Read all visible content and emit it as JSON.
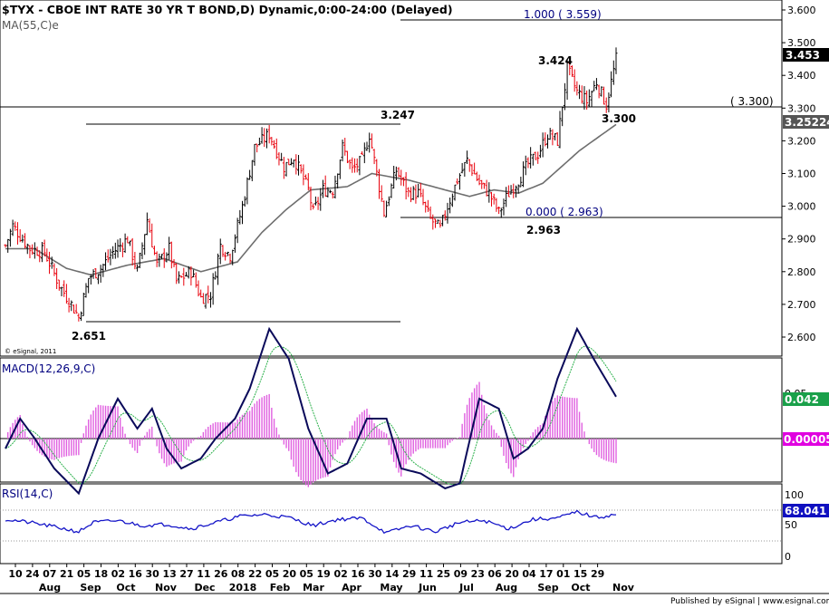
{
  "header": {
    "title": "$TYX - CBOE INT RATE 30 YR T BOND,D) Dynamic,0:00-24:00 (Delayed)",
    "ma_label": "MA(55,C)e",
    "copyright": "© eSignal, 2011"
  },
  "colors": {
    "up_bar": "#000000",
    "down_bar": "#e8000b",
    "ma_line": "#6e6e6e",
    "macd_line": "#0a0a5a",
    "signal_line": "#2ab04a",
    "histogram": "#e060e0",
    "rsi_line": "#1414c8",
    "fib_text": "#000080",
    "last_price_box": "#000000",
    "ma_box": "#555555",
    "macd_box": "#1aa04a",
    "hist_box": "#e000e0",
    "rsi_box": "#1010c0"
  },
  "price_panel": {
    "y_ticks": [
      "3.600",
      "3.500",
      "3.400",
      "3.300",
      "3.200",
      "3.100",
      "3.000",
      "2.900",
      "2.800",
      "2.700",
      "2.600"
    ],
    "y_range": [
      2.54,
      3.62
    ],
    "last_price": "3.453",
    "ma_value": "3.25224",
    "annotations": {
      "fib_top": "1.000 ( 3.559)",
      "fib_bottom": "0.000 ( 2.963)",
      "level_3300": "( 3.300)",
      "label_3424": "3.424",
      "label_3300": "3.300",
      "label_3247": "3.247",
      "label_2963": "2.963",
      "label_2651": "2.651"
    }
  },
  "macd_panel": {
    "label": "MACD(12,26,9,C)",
    "tick": "0.05",
    "macd_value": "0.042",
    "hist_value": "0.00005"
  },
  "rsi_panel": {
    "label": "RSI(14,C)",
    "ticks": [
      "100",
      "50",
      "0"
    ],
    "value": "68.041"
  },
  "x_axis": {
    "days": [
      "10",
      "24",
      "07",
      "21",
      "05",
      "18",
      "02",
      "16",
      "30",
      "13",
      "27",
      "11",
      "26",
      "08",
      "22",
      "05",
      "20",
      "05",
      "19",
      "02",
      "16",
      "30",
      "14",
      "29",
      "11",
      "25",
      "09",
      "23",
      "06",
      "20",
      "04",
      "17",
      "01",
      "15",
      "29"
    ],
    "months": [
      "Aug",
      "Sep",
      "Oct",
      "Nov",
      "Dec",
      "2018",
      "Feb",
      "Mar",
      "Apr",
      "May",
      "Jun",
      "Jul",
      "Aug",
      "Sep",
      "Oct",
      "Nov"
    ]
  },
  "footer": {
    "published": "Published by eSignal | www.esignal.com"
  },
  "chart_data": {
    "type": "line",
    "title": "$TYX - CBOE INT RATE 30 YR T BOND,D) Dynamic,0:00-24:00 (Delayed)",
    "price_key_points": [
      {
        "t": 0,
        "v": 2.88
      },
      {
        "t": 3,
        "v": 2.94
      },
      {
        "t": 10,
        "v": 2.87
      },
      {
        "t": 16,
        "v": 2.86
      },
      {
        "t": 22,
        "v": 2.76
      },
      {
        "t": 27,
        "v": 2.7
      },
      {
        "t": 30,
        "v": 2.66
      },
      {
        "t": 34,
        "v": 2.78
      },
      {
        "t": 39,
        "v": 2.81
      },
      {
        "t": 44,
        "v": 2.86
      },
      {
        "t": 50,
        "v": 2.9
      },
      {
        "t": 54,
        "v": 2.8
      },
      {
        "t": 58,
        "v": 2.96
      },
      {
        "t": 62,
        "v": 2.82
      },
      {
        "t": 67,
        "v": 2.87
      },
      {
        "t": 70,
        "v": 2.77
      },
      {
        "t": 76,
        "v": 2.8
      },
      {
        "t": 80,
        "v": 2.72
      },
      {
        "t": 84,
        "v": 2.73
      },
      {
        "t": 88,
        "v": 2.88
      },
      {
        "t": 92,
        "v": 2.85
      },
      {
        "t": 97,
        "v": 3.0
      },
      {
        "t": 102,
        "v": 3.18
      },
      {
        "t": 108,
        "v": 3.22
      },
      {
        "t": 114,
        "v": 3.12
      },
      {
        "t": 118,
        "v": 3.15
      },
      {
        "t": 124,
        "v": 3.05
      },
      {
        "t": 126,
        "v": 2.98
      },
      {
        "t": 130,
        "v": 3.05
      },
      {
        "t": 134,
        "v": 3.05
      },
      {
        "t": 138,
        "v": 3.18
      },
      {
        "t": 142,
        "v": 3.11
      },
      {
        "t": 146,
        "v": 3.14
      },
      {
        "t": 149,
        "v": 3.22
      },
      {
        "t": 152,
        "v": 3.1
      },
      {
        "t": 155,
        "v": 2.98
      },
      {
        "t": 160,
        "v": 3.11
      },
      {
        "t": 165,
        "v": 3.04
      },
      {
        "t": 169,
        "v": 3.04
      },
      {
        "t": 174,
        "v": 2.96
      },
      {
        "t": 178,
        "v": 2.93
      },
      {
        "t": 181,
        "v": 3.0
      },
      {
        "t": 185,
        "v": 3.08
      },
      {
        "t": 189,
        "v": 3.14
      },
      {
        "t": 194,
        "v": 3.07
      },
      {
        "t": 198,
        "v": 3.04
      },
      {
        "t": 202,
        "v": 2.98
      },
      {
        "t": 206,
        "v": 3.04
      },
      {
        "t": 210,
        "v": 3.08
      },
      {
        "t": 214,
        "v": 3.13
      },
      {
        "t": 218,
        "v": 3.16
      },
      {
        "t": 222,
        "v": 3.22
      },
      {
        "t": 226,
        "v": 3.2
      },
      {
        "t": 230,
        "v": 3.42
      },
      {
        "t": 234,
        "v": 3.35
      },
      {
        "t": 238,
        "v": 3.32
      },
      {
        "t": 242,
        "v": 3.38
      },
      {
        "t": 246,
        "v": 3.31
      },
      {
        "t": 250,
        "v": 3.45
      }
    ],
    "ma55_key_points": [
      {
        "t": 0,
        "v": 2.87
      },
      {
        "t": 12,
        "v": 2.87
      },
      {
        "t": 25,
        "v": 2.81
      },
      {
        "t": 35,
        "v": 2.79
      },
      {
        "t": 50,
        "v": 2.82
      },
      {
        "t": 65,
        "v": 2.84
      },
      {
        "t": 80,
        "v": 2.8
      },
      {
        "t": 95,
        "v": 2.83
      },
      {
        "t": 105,
        "v": 2.92
      },
      {
        "t": 115,
        "v": 2.99
      },
      {
        "t": 125,
        "v": 3.05
      },
      {
        "t": 140,
        "v": 3.06
      },
      {
        "t": 150,
        "v": 3.1
      },
      {
        "t": 165,
        "v": 3.08
      },
      {
        "t": 180,
        "v": 3.05
      },
      {
        "t": 190,
        "v": 3.03
      },
      {
        "t": 200,
        "v": 3.05
      },
      {
        "t": 210,
        "v": 3.04
      },
      {
        "t": 220,
        "v": 3.07
      },
      {
        "t": 235,
        "v": 3.17
      },
      {
        "t": 250,
        "v": 3.25
      }
    ],
    "macd_key_points": [
      {
        "t": 0,
        "v": -0.01
      },
      {
        "t": 6,
        "v": 0.02
      },
      {
        "t": 12,
        "v": 0.0
      },
      {
        "t": 20,
        "v": -0.03
      },
      {
        "t": 30,
        "v": -0.055
      },
      {
        "t": 38,
        "v": 0.0
      },
      {
        "t": 46,
        "v": 0.04
      },
      {
        "t": 54,
        "v": 0.01
      },
      {
        "t": 60,
        "v": 0.03
      },
      {
        "t": 66,
        "v": -0.01
      },
      {
        "t": 72,
        "v": -0.03
      },
      {
        "t": 80,
        "v": -0.02
      },
      {
        "t": 86,
        "v": 0.0
      },
      {
        "t": 94,
        "v": 0.02
      },
      {
        "t": 100,
        "v": 0.05
      },
      {
        "t": 108,
        "v": 0.11
      },
      {
        "t": 116,
        "v": 0.08
      },
      {
        "t": 124,
        "v": 0.01
      },
      {
        "t": 132,
        "v": -0.035
      },
      {
        "t": 140,
        "v": -0.025
      },
      {
        "t": 148,
        "v": 0.02
      },
      {
        "t": 156,
        "v": 0.02
      },
      {
        "t": 162,
        "v": -0.03
      },
      {
        "t": 170,
        "v": -0.035
      },
      {
        "t": 180,
        "v": -0.05
      },
      {
        "t": 186,
        "v": -0.045
      },
      {
        "t": 194,
        "v": 0.04
      },
      {
        "t": 202,
        "v": 0.03
      },
      {
        "t": 208,
        "v": -0.02
      },
      {
        "t": 214,
        "v": -0.01
      },
      {
        "t": 220,
        "v": 0.01
      },
      {
        "t": 226,
        "v": 0.06
      },
      {
        "t": 234,
        "v": 0.11
      },
      {
        "t": 242,
        "v": 0.075
      },
      {
        "t": 250,
        "v": 0.042
      }
    ],
    "rsi_key_points": [
      {
        "t": 0,
        "v": 60
      },
      {
        "t": 10,
        "v": 55
      },
      {
        "t": 20,
        "v": 48
      },
      {
        "t": 30,
        "v": 40
      },
      {
        "t": 36,
        "v": 55
      },
      {
        "t": 46,
        "v": 58
      },
      {
        "t": 56,
        "v": 50
      },
      {
        "t": 66,
        "v": 52
      },
      {
        "t": 76,
        "v": 45
      },
      {
        "t": 86,
        "v": 55
      },
      {
        "t": 96,
        "v": 65
      },
      {
        "t": 106,
        "v": 68
      },
      {
        "t": 116,
        "v": 63
      },
      {
        "t": 126,
        "v": 50
      },
      {
        "t": 136,
        "v": 60
      },
      {
        "t": 146,
        "v": 62
      },
      {
        "t": 156,
        "v": 38
      },
      {
        "t": 166,
        "v": 50
      },
      {
        "t": 176,
        "v": 40
      },
      {
        "t": 186,
        "v": 55
      },
      {
        "t": 196,
        "v": 58
      },
      {
        "t": 206,
        "v": 45
      },
      {
        "t": 216,
        "v": 60
      },
      {
        "t": 226,
        "v": 62
      },
      {
        "t": 234,
        "v": 72
      },
      {
        "t": 242,
        "v": 63
      },
      {
        "t": 250,
        "v": 68
      }
    ],
    "bars_count": 251,
    "x_range": [
      0,
      250
    ]
  }
}
